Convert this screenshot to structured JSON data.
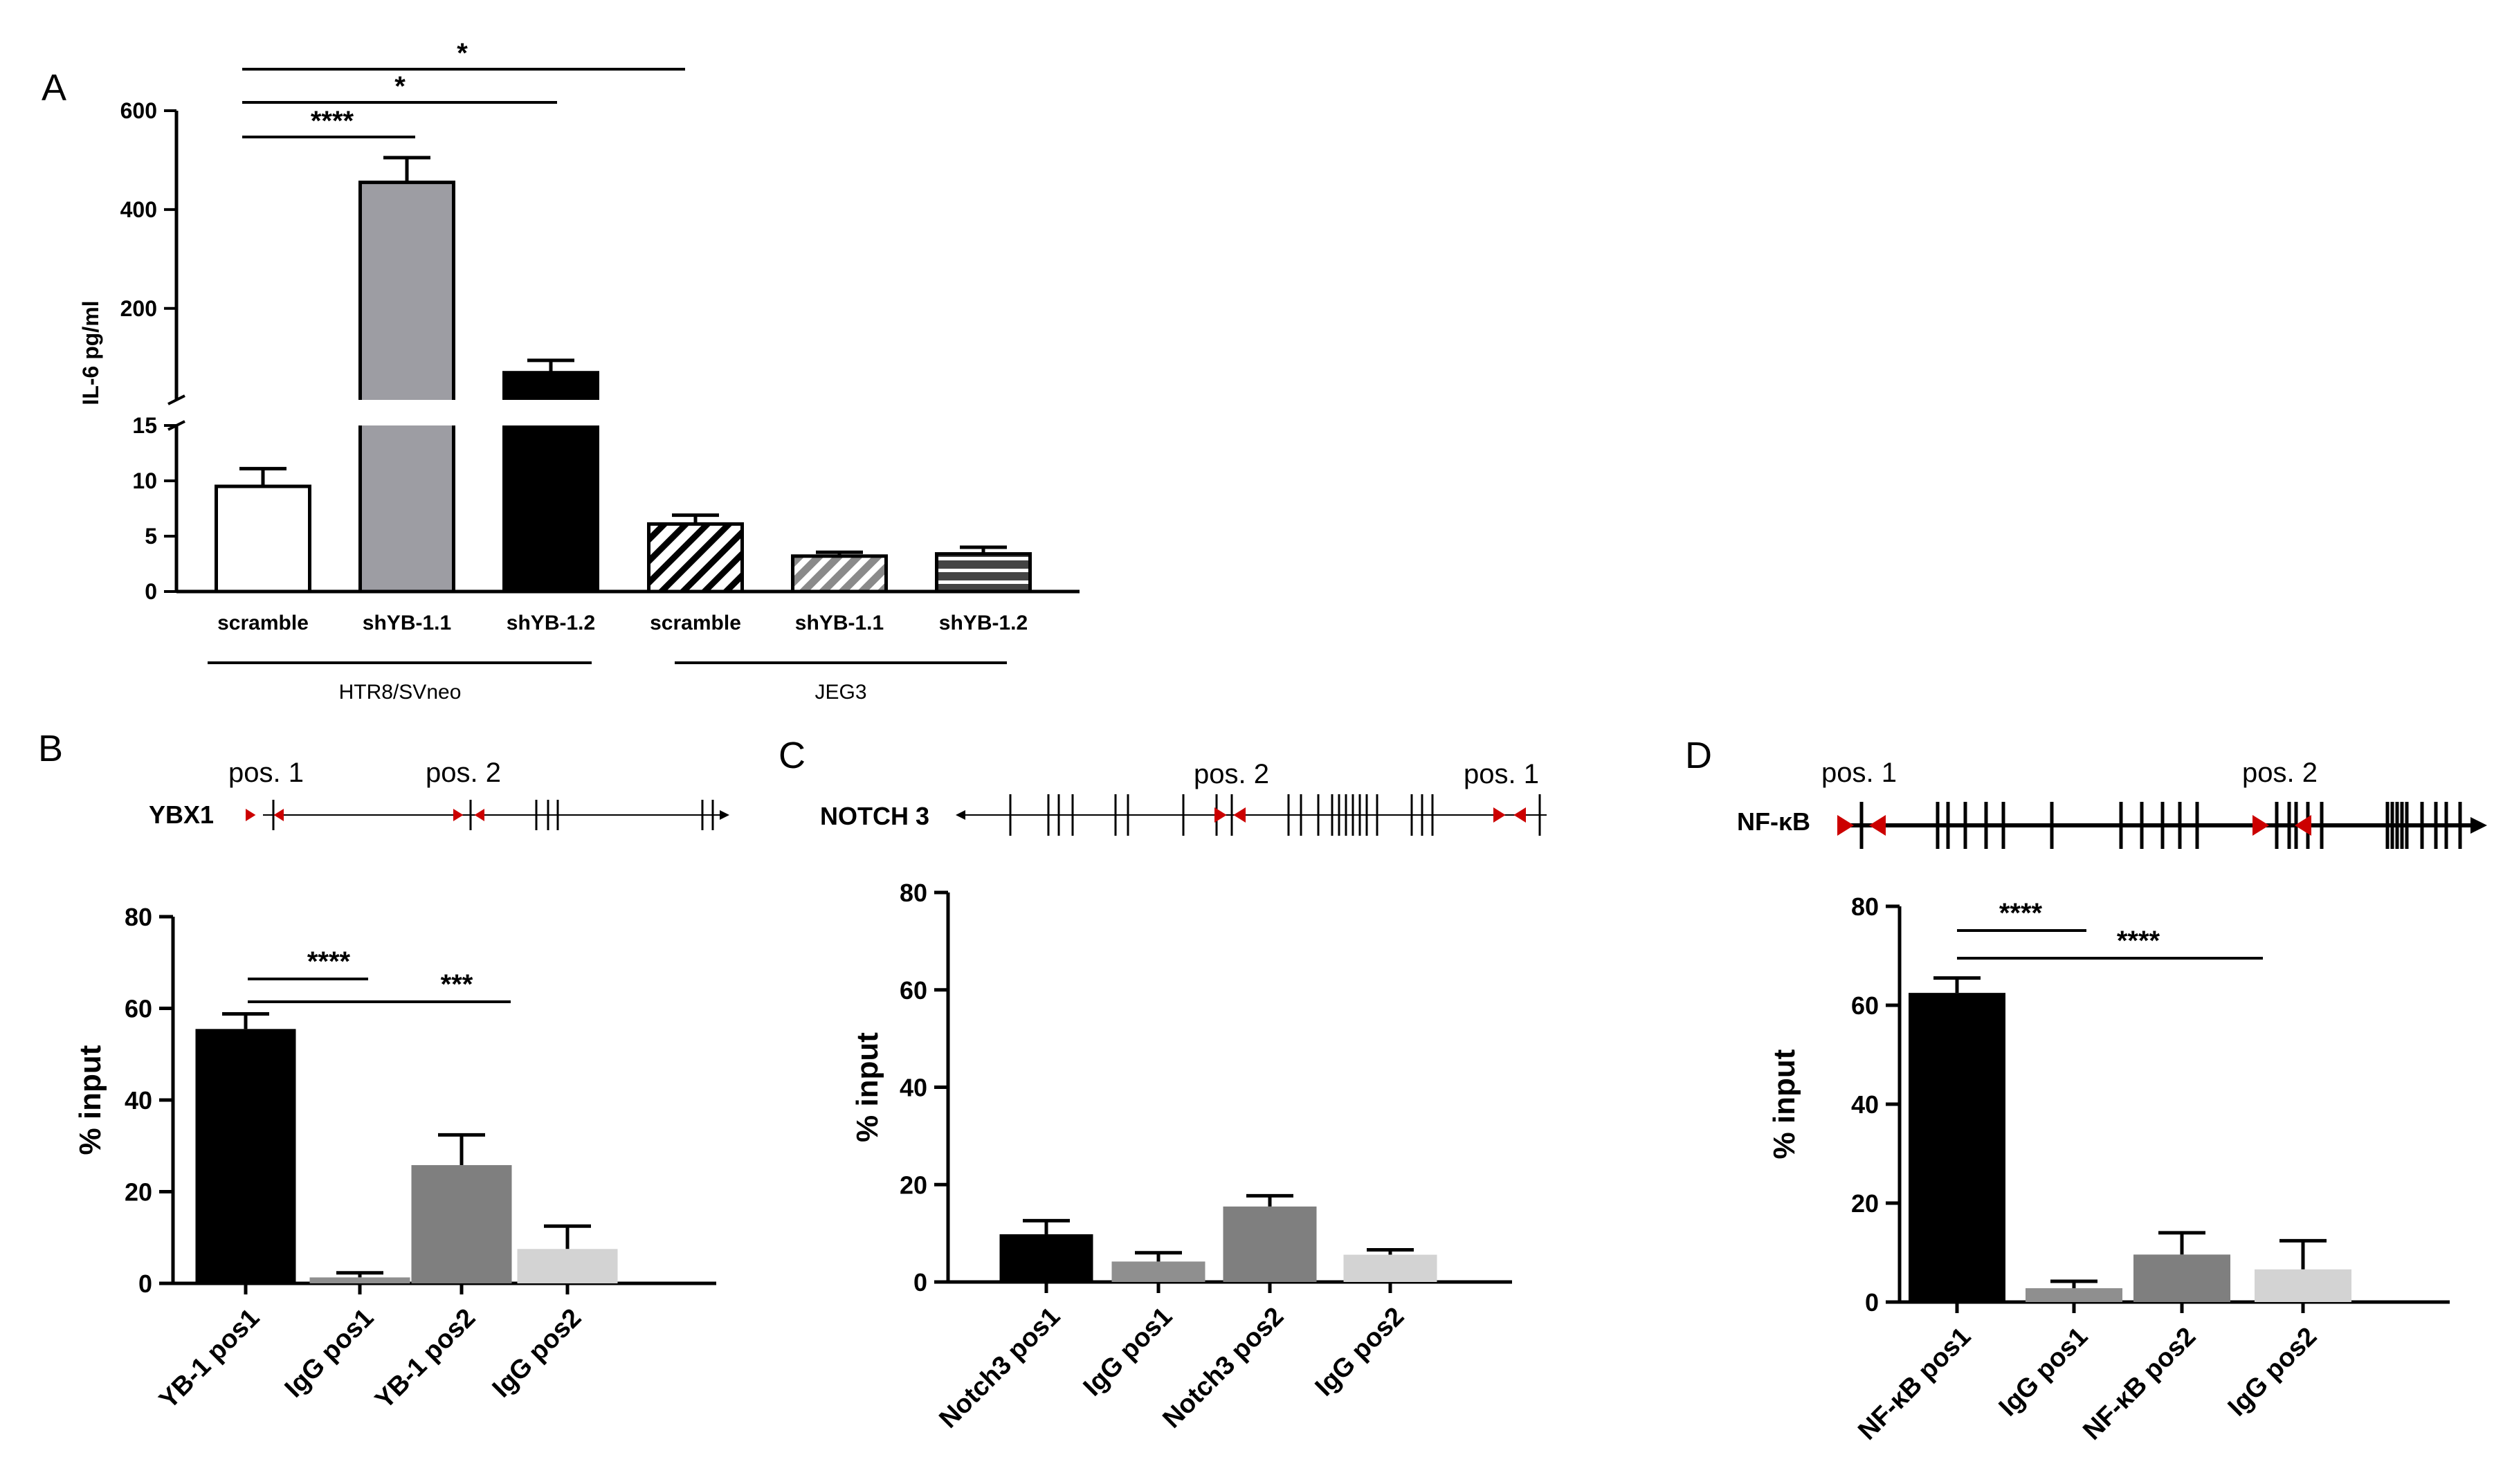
{
  "chart_data": [
    {
      "panel": "A",
      "type": "bar",
      "ylabel": "IL-6 pg/ml",
      "axis_break": true,
      "ylim_lower": [
        0,
        15
      ],
      "ylim_upper": [
        15,
        600
      ],
      "lower_ticks": [
        "0",
        "5",
        "10",
        "15"
      ],
      "upper_ticks": [
        "200",
        "400",
        "600"
      ],
      "categories": [
        "scramble",
        "shYB-1.1",
        "shYB-1.2",
        "scramble",
        "shYB-1.1",
        "shYB-1.2"
      ],
      "values": [
        9.5,
        455,
        70,
        6.1,
        3.2,
        3.4
      ],
      "errors": [
        1.6,
        50,
        25,
        0.8,
        0.35,
        0.6
      ],
      "fill": [
        "white",
        "gray",
        "black",
        "diag-hatch",
        "gray-diag-hatch",
        "horizontal-stripes"
      ],
      "groups": [
        {
          "label": "HTR8/SVneo"
        },
        {
          "label": "JEG3"
        }
      ],
      "significance": [
        "****",
        "*",
        "*"
      ]
    },
    {
      "panel": "B",
      "type": "bar",
      "gene": "YBX1",
      "positions": [
        "pos. 1",
        "pos. 2"
      ],
      "ylabel": "% input",
      "ylim": [
        0,
        80
      ],
      "ticks": [
        "0",
        "20",
        "40",
        "60",
        "80"
      ],
      "categories": [
        "YB-1 pos1",
        "IgG pos1",
        "YB-1 pos2",
        "IgG pos2"
      ],
      "values": [
        55.5,
        1.3,
        25.8,
        7.5
      ],
      "errors": [
        3.3,
        1.0,
        6.6,
        5.0
      ],
      "colors": [
        "#000000",
        "#8f8f8f",
        "#7f7f7f",
        "#d3d3d3"
      ],
      "significance": [
        "****",
        "***"
      ]
    },
    {
      "panel": "C",
      "type": "bar",
      "gene": "NOTCH 3",
      "positions": [
        "pos. 2",
        "pos. 1"
      ],
      "ylabel": "% input",
      "ylim": [
        0,
        80
      ],
      "ticks": [
        "0",
        "20",
        "40",
        "60",
        "80"
      ],
      "categories": [
        "Notch3 pos1",
        "IgG pos1",
        "Notch3 pos2",
        "IgG pos2"
      ],
      "values": [
        9.8,
        4.2,
        15.5,
        5.6
      ],
      "errors": [
        2.8,
        1.8,
        2.2,
        1.0
      ],
      "colors": [
        "#000000",
        "#8f8f8f",
        "#7f7f7f",
        "#d3d3d3"
      ],
      "significance": []
    },
    {
      "panel": "D",
      "type": "bar",
      "gene": "NF-κB",
      "positions": [
        "pos. 1",
        "pos. 2"
      ],
      "ylabel": "% input",
      "ylim": [
        0,
        80
      ],
      "ticks": [
        "0",
        "20",
        "40",
        "60",
        "80"
      ],
      "categories": [
        "NF-κB pos1",
        "IgG pos1",
        "NF-κB pos2",
        "IgG pos2"
      ],
      "values": [
        62.5,
        2.8,
        9.6,
        6.6
      ],
      "errors": [
        3.0,
        1.4,
        4.4,
        5.8
      ],
      "colors": [
        "#000000",
        "#8f8f8f",
        "#7f7f7f",
        "#d3d3d3"
      ],
      "significance": [
        "****",
        "****"
      ]
    }
  ]
}
